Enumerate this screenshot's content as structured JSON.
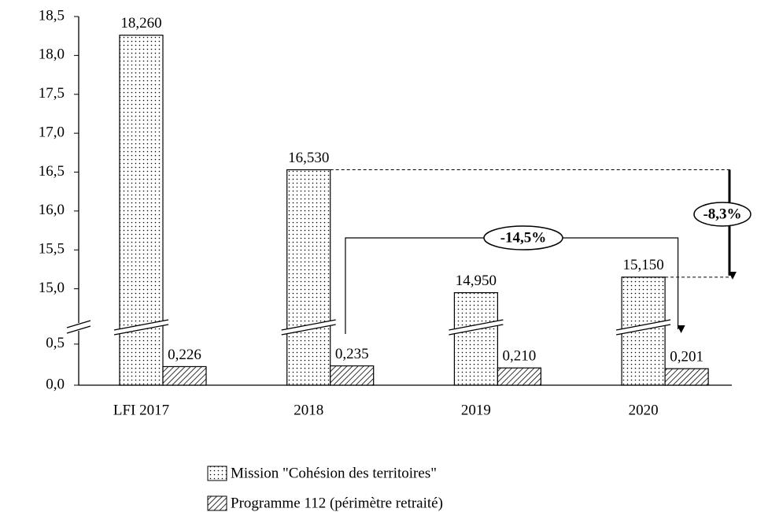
{
  "chart_data": {
    "type": "bar",
    "categories": [
      "LFI 2017",
      "2018",
      "2019",
      "2020"
    ],
    "series": [
      {
        "name": "Mission \"Cohésion des territoires\"",
        "color": "#000000",
        "pattern": "dots",
        "values": [
          18.26,
          16.53,
          14.95,
          15.15
        ],
        "value_labels": [
          "18,260",
          "16,530",
          "14,950",
          "15,150"
        ]
      },
      {
        "name": "Programme 112 (périmètre retraité)",
        "color": "#000000",
        "pattern": "hatch",
        "values": [
          0.226,
          0.235,
          0.21,
          0.201
        ],
        "value_labels": [
          "0,226",
          "0,235",
          "0,210",
          "0,201"
        ]
      }
    ],
    "ylim": [
      0,
      18.5
    ],
    "ybreak": [
      0.7,
      14.5
    ],
    "yticks": [
      {
        "value": 0,
        "label": "0,0"
      },
      {
        "value": 0.5,
        "label": "0,5"
      },
      {
        "value": 15,
        "label": "15,0"
      },
      {
        "value": 15.5,
        "label": "15,5"
      },
      {
        "value": 16,
        "label": "16,0"
      },
      {
        "value": 16.5,
        "label": "16,5"
      },
      {
        "value": 17,
        "label": "17,0"
      },
      {
        "value": 17.5,
        "label": "17,5"
      },
      {
        "value": 18,
        "label": "18,0"
      },
      {
        "value": 18.5,
        "label": "18,5"
      }
    ],
    "annotations": [
      "-14,5%",
      "-8,3%"
    ],
    "grid": false,
    "legend": "bottom"
  }
}
